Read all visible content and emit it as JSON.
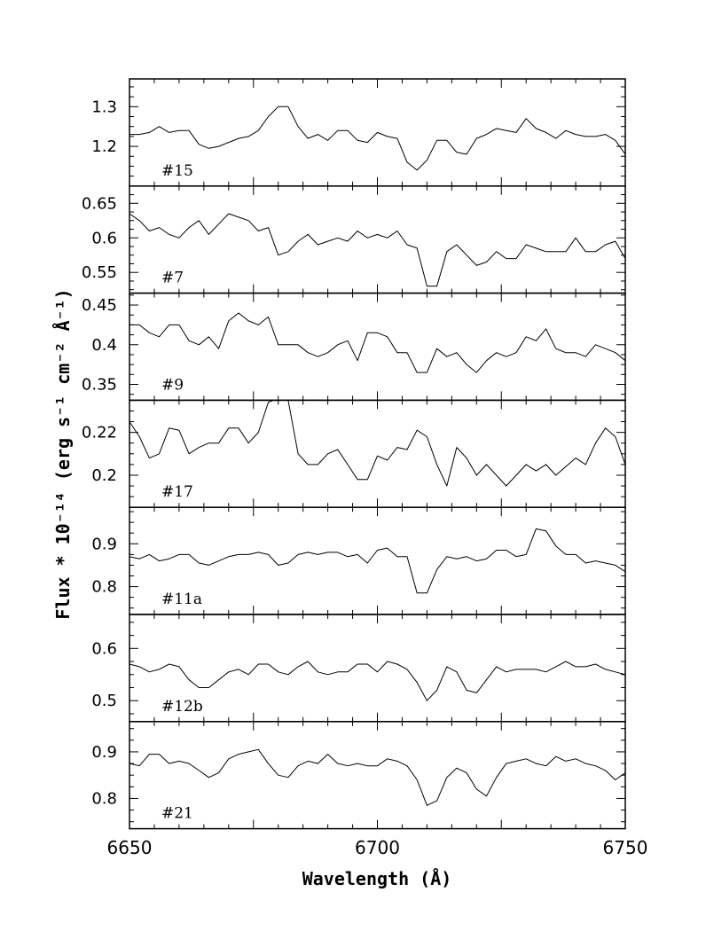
{
  "chart_data": {
    "type": "line",
    "xlabel": "Wavelength (Å)",
    "ylabel": "Flux * 10⁻¹⁴ (erg s⁻¹ cm⁻² Å⁻¹)",
    "xlim": [
      6650,
      6750
    ],
    "xticks": [
      6650,
      6700,
      6750
    ],
    "x_tick_labels": [
      "6650",
      "6700",
      "6750"
    ],
    "panels": [
      {
        "label": "#15",
        "ylim": [
          1.1,
          1.37
        ],
        "yticks": [
          1.2,
          1.3
        ],
        "y_tick_labels": [
          "1.2",
          "1.3"
        ],
        "x": [
          6650,
          6652,
          6654,
          6656,
          6658,
          6660,
          6662,
          6664,
          6666,
          6668,
          6670,
          6672,
          6674,
          6676,
          6678,
          6680,
          6682,
          6684,
          6686,
          6688,
          6690,
          6692,
          6694,
          6696,
          6698,
          6700,
          6702,
          6704,
          6706,
          6708,
          6710,
          6712,
          6714,
          6716,
          6718,
          6720,
          6722,
          6724,
          6726,
          6728,
          6730,
          6732,
          6734,
          6736,
          6738,
          6740,
          6742,
          6744,
          6746,
          6748,
          6750
        ],
        "y": [
          1.23,
          1.23,
          1.235,
          1.25,
          1.235,
          1.24,
          1.24,
          1.205,
          1.195,
          1.2,
          1.21,
          1.22,
          1.225,
          1.24,
          1.275,
          1.3,
          1.3,
          1.25,
          1.22,
          1.23,
          1.215,
          1.24,
          1.24,
          1.215,
          1.21,
          1.235,
          1.225,
          1.22,
          1.16,
          1.14,
          1.165,
          1.215,
          1.215,
          1.185,
          1.18,
          1.22,
          1.23,
          1.245,
          1.24,
          1.235,
          1.27,
          1.245,
          1.235,
          1.22,
          1.24,
          1.23,
          1.225,
          1.225,
          1.23,
          1.215,
          1.18
        ]
      },
      {
        "label": "#7",
        "ylim": [
          0.52,
          0.675
        ],
        "yticks": [
          0.55,
          0.6,
          0.65
        ],
        "y_tick_labels": [
          "0.55",
          "0.6",
          "0.65"
        ],
        "x": [
          6650,
          6652,
          6654,
          6656,
          6658,
          6660,
          6662,
          6664,
          6666,
          6668,
          6670,
          6672,
          6674,
          6676,
          6678,
          6680,
          6682,
          6684,
          6686,
          6688,
          6690,
          6692,
          6694,
          6696,
          6698,
          6700,
          6702,
          6704,
          6706,
          6708,
          6710,
          6712,
          6714,
          6716,
          6718,
          6720,
          6722,
          6724,
          6726,
          6728,
          6730,
          6732,
          6734,
          6736,
          6738,
          6740,
          6742,
          6744,
          6746,
          6748,
          6750
        ],
        "y": [
          0.635,
          0.625,
          0.61,
          0.615,
          0.605,
          0.6,
          0.615,
          0.625,
          0.605,
          0.62,
          0.635,
          0.63,
          0.625,
          0.61,
          0.615,
          0.575,
          0.58,
          0.595,
          0.605,
          0.59,
          0.595,
          0.6,
          0.595,
          0.61,
          0.6,
          0.605,
          0.6,
          0.61,
          0.59,
          0.585,
          0.53,
          0.53,
          0.58,
          0.59,
          0.575,
          0.56,
          0.565,
          0.58,
          0.57,
          0.57,
          0.59,
          0.585,
          0.58,
          0.58,
          0.58,
          0.6,
          0.58,
          0.58,
          0.59,
          0.595,
          0.57
        ]
      },
      {
        "label": "#9",
        "ylim": [
          0.33,
          0.465
        ],
        "yticks": [
          0.35,
          0.4,
          0.45
        ],
        "y_tick_labels": [
          "0.35",
          "0.4",
          "0.45"
        ],
        "x": [
          6650,
          6652,
          6654,
          6656,
          6658,
          6660,
          6662,
          6664,
          6666,
          6668,
          6670,
          6672,
          6674,
          6676,
          6678,
          6680,
          6682,
          6684,
          6686,
          6688,
          6690,
          6692,
          6694,
          6696,
          6698,
          6700,
          6702,
          6704,
          6706,
          6708,
          6710,
          6712,
          6714,
          6716,
          6718,
          6720,
          6722,
          6724,
          6726,
          6728,
          6730,
          6732,
          6734,
          6736,
          6738,
          6740,
          6742,
          6744,
          6746,
          6748,
          6750
        ],
        "y": [
          0.425,
          0.425,
          0.415,
          0.41,
          0.425,
          0.425,
          0.405,
          0.4,
          0.41,
          0.395,
          0.43,
          0.44,
          0.43,
          0.425,
          0.435,
          0.4,
          0.4,
          0.4,
          0.39,
          0.385,
          0.39,
          0.4,
          0.405,
          0.38,
          0.415,
          0.415,
          0.41,
          0.39,
          0.39,
          0.365,
          0.365,
          0.395,
          0.385,
          0.39,
          0.375,
          0.365,
          0.38,
          0.39,
          0.385,
          0.39,
          0.41,
          0.405,
          0.42,
          0.395,
          0.39,
          0.39,
          0.385,
          0.4,
          0.395,
          0.39,
          0.38
        ]
      },
      {
        "label": "#17",
        "ylim": [
          0.185,
          0.235
        ],
        "yticks": [
          0.2,
          0.22
        ],
        "y_tick_labels": [
          "0.2",
          "0.22"
        ],
        "x": [
          6650,
          6652,
          6654,
          6656,
          6658,
          6660,
          6662,
          6664,
          6666,
          6668,
          6670,
          6672,
          6674,
          6676,
          6678,
          6680,
          6682,
          6684,
          6686,
          6688,
          6690,
          6692,
          6694,
          6696,
          6698,
          6700,
          6702,
          6704,
          6706,
          6708,
          6710,
          6712,
          6714,
          6716,
          6718,
          6720,
          6722,
          6724,
          6726,
          6728,
          6730,
          6732,
          6734,
          6736,
          6738,
          6740,
          6742,
          6744,
          6746,
          6748,
          6750
        ],
        "y": [
          0.225,
          0.218,
          0.208,
          0.21,
          0.222,
          0.221,
          0.21,
          0.213,
          0.215,
          0.215,
          0.222,
          0.222,
          0.215,
          0.22,
          0.234,
          0.236,
          0.235,
          0.21,
          0.205,
          0.205,
          0.21,
          0.212,
          0.205,
          0.198,
          0.198,
          0.209,
          0.207,
          0.213,
          0.212,
          0.221,
          0.218,
          0.205,
          0.195,
          0.213,
          0.208,
          0.2,
          0.205,
          0.2,
          0.195,
          0.2,
          0.205,
          0.202,
          0.205,
          0.2,
          0.204,
          0.208,
          0.205,
          0.215,
          0.222,
          0.218,
          0.205
        ]
      },
      {
        "label": "#11a",
        "ylim": [
          0.735,
          0.985
        ],
        "yticks": [
          0.8,
          0.9
        ],
        "y_tick_labels": [
          "0.8",
          "0.9"
        ],
        "x": [
          6650,
          6652,
          6654,
          6656,
          6658,
          6660,
          6662,
          6664,
          6666,
          6668,
          6670,
          6672,
          6674,
          6676,
          6678,
          6680,
          6682,
          6684,
          6686,
          6688,
          6690,
          6692,
          6694,
          6696,
          6698,
          6700,
          6702,
          6704,
          6706,
          6708,
          6710,
          6712,
          6714,
          6716,
          6718,
          6720,
          6722,
          6724,
          6726,
          6728,
          6730,
          6732,
          6734,
          6736,
          6738,
          6740,
          6742,
          6744,
          6746,
          6748,
          6750
        ],
        "y": [
          0.87,
          0.865,
          0.875,
          0.86,
          0.865,
          0.875,
          0.875,
          0.855,
          0.85,
          0.86,
          0.87,
          0.875,
          0.875,
          0.88,
          0.875,
          0.85,
          0.855,
          0.875,
          0.88,
          0.875,
          0.88,
          0.88,
          0.87,
          0.875,
          0.855,
          0.885,
          0.89,
          0.87,
          0.87,
          0.785,
          0.785,
          0.84,
          0.87,
          0.865,
          0.87,
          0.86,
          0.865,
          0.885,
          0.885,
          0.87,
          0.875,
          0.935,
          0.93,
          0.895,
          0.875,
          0.875,
          0.855,
          0.86,
          0.855,
          0.85,
          0.835
        ]
      },
      {
        "label": "#12b",
        "ylim": [
          0.46,
          0.665
        ],
        "yticks": [
          0.5,
          0.6
        ],
        "y_tick_labels": [
          "0.5",
          "0.6"
        ],
        "x": [
          6650,
          6652,
          6654,
          6656,
          6658,
          6660,
          6662,
          6664,
          6666,
          6668,
          6670,
          6672,
          6674,
          6676,
          6678,
          6680,
          6682,
          6684,
          6686,
          6688,
          6690,
          6692,
          6694,
          6696,
          6698,
          6700,
          6702,
          6704,
          6706,
          6708,
          6710,
          6712,
          6714,
          6716,
          6718,
          6720,
          6722,
          6724,
          6726,
          6728,
          6730,
          6732,
          6734,
          6736,
          6738,
          6740,
          6742,
          6744,
          6746,
          6748,
          6750
        ],
        "y": [
          0.57,
          0.565,
          0.555,
          0.56,
          0.57,
          0.565,
          0.54,
          0.525,
          0.525,
          0.54,
          0.555,
          0.56,
          0.55,
          0.57,
          0.57,
          0.555,
          0.55,
          0.565,
          0.575,
          0.555,
          0.55,
          0.555,
          0.555,
          0.57,
          0.57,
          0.555,
          0.575,
          0.57,
          0.56,
          0.535,
          0.5,
          0.52,
          0.565,
          0.555,
          0.52,
          0.515,
          0.54,
          0.565,
          0.555,
          0.56,
          0.56,
          0.56,
          0.555,
          0.565,
          0.575,
          0.565,
          0.565,
          0.57,
          0.56,
          0.555,
          0.55
        ]
      },
      {
        "label": "#21",
        "ylim": [
          0.735,
          0.965
        ],
        "yticks": [
          0.8,
          0.9
        ],
        "y_tick_labels": [
          "0.8",
          "0.9"
        ],
        "x": [
          6650,
          6652,
          6654,
          6656,
          6658,
          6660,
          6662,
          6664,
          6666,
          6668,
          6670,
          6672,
          6674,
          6676,
          6678,
          6680,
          6682,
          6684,
          6686,
          6688,
          6690,
          6692,
          6694,
          6696,
          6698,
          6700,
          6702,
          6704,
          6706,
          6708,
          6710,
          6712,
          6714,
          6716,
          6718,
          6720,
          6722,
          6724,
          6726,
          6728,
          6730,
          6732,
          6734,
          6736,
          6738,
          6740,
          6742,
          6744,
          6746,
          6748,
          6750
        ],
        "y": [
          0.875,
          0.87,
          0.895,
          0.895,
          0.875,
          0.88,
          0.875,
          0.86,
          0.845,
          0.855,
          0.885,
          0.895,
          0.9,
          0.905,
          0.875,
          0.85,
          0.845,
          0.87,
          0.88,
          0.875,
          0.895,
          0.875,
          0.87,
          0.875,
          0.87,
          0.87,
          0.885,
          0.88,
          0.87,
          0.84,
          0.785,
          0.795,
          0.845,
          0.865,
          0.855,
          0.82,
          0.805,
          0.845,
          0.875,
          0.88,
          0.885,
          0.875,
          0.87,
          0.89,
          0.88,
          0.885,
          0.875,
          0.87,
          0.86,
          0.84,
          0.855
        ]
      }
    ]
  }
}
